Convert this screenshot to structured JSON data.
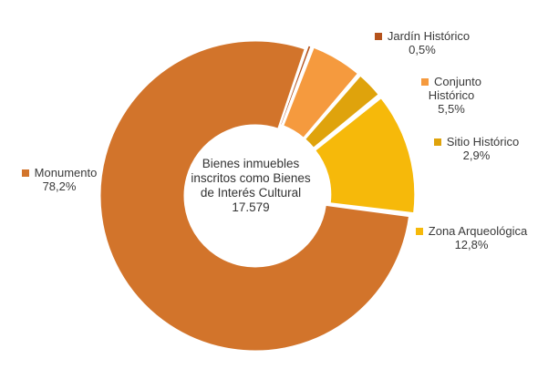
{
  "chart_data": {
    "type": "pie",
    "center_label": {
      "lines": [
        "Bienes inmuebles",
        "inscritos como Bienes",
        "de Interés Cultural"
      ],
      "total": "17.579"
    },
    "slices": [
      {
        "name": "Jardín Histórico",
        "value": 0.5,
        "value_label": "0,5%",
        "color": "#b5531c"
      },
      {
        "name": "Conjunto Histórico",
        "value": 5.5,
        "value_label": "5,5%",
        "color": "#f59a3e"
      },
      {
        "name": "Sitio Histórico",
        "value": 2.9,
        "value_label": "2,9%",
        "color": "#dfa30c"
      },
      {
        "name": "Zona Arqueológica",
        "value": 12.8,
        "value_label": "12,8%",
        "color": "#f6b90a"
      },
      {
        "name": "Monumento",
        "value": 78.2,
        "value_label": "78,2%",
        "color": "#d2742b"
      }
    ],
    "legend_placement": "around"
  }
}
